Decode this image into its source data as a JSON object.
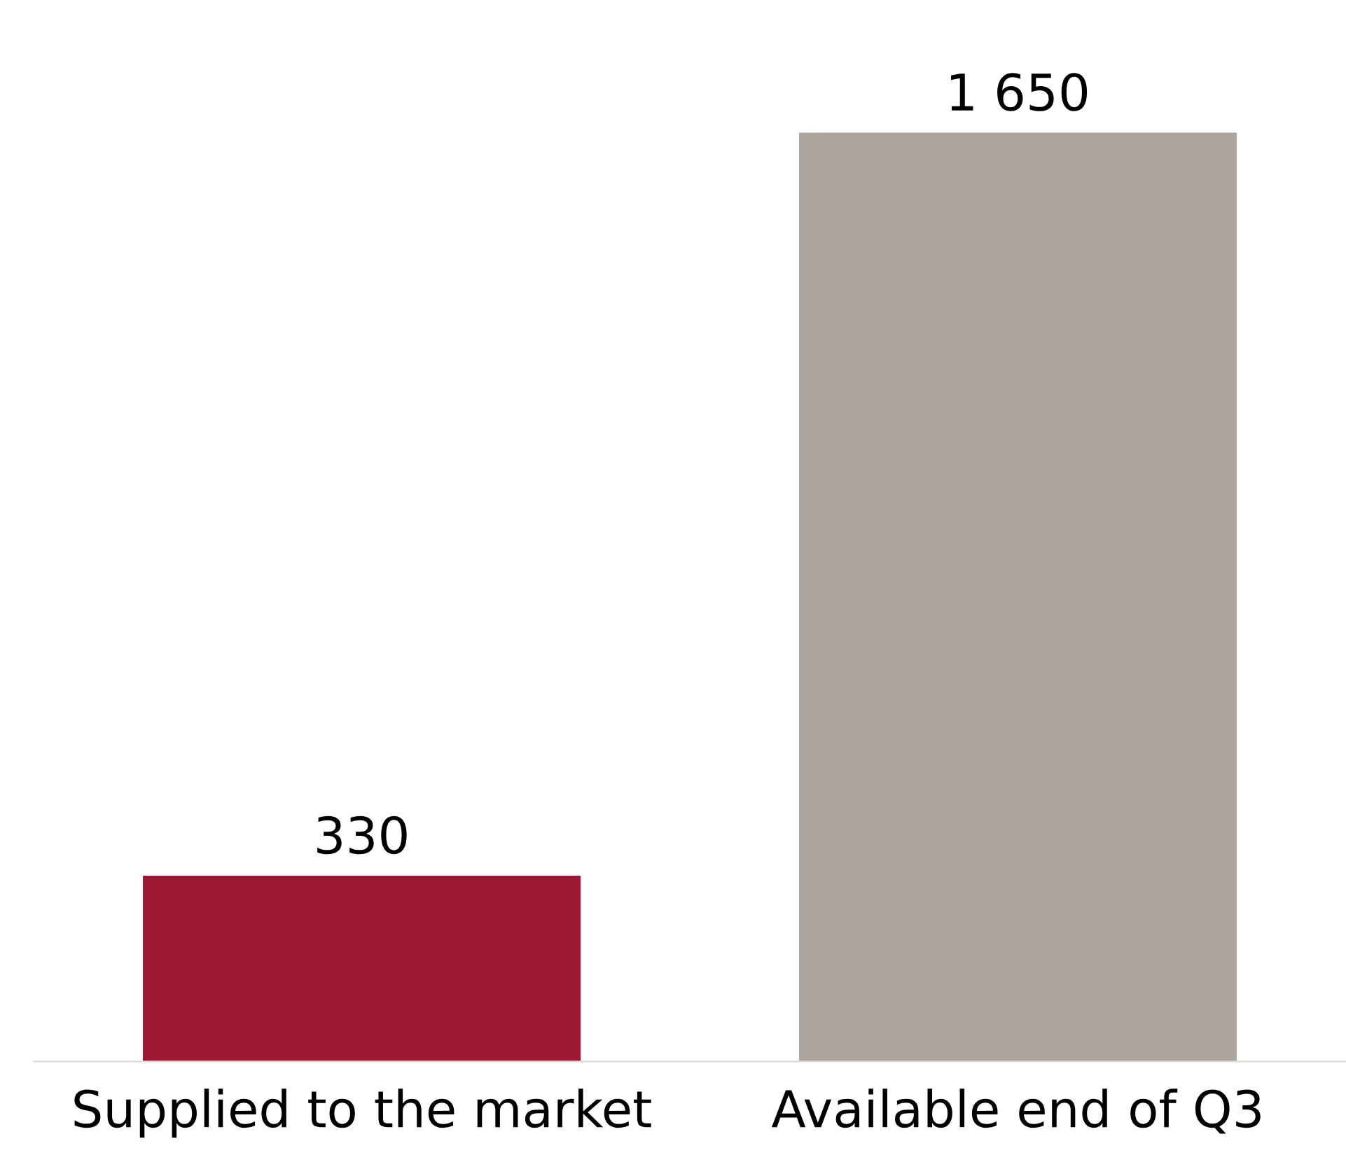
{
  "chart_data": {
    "type": "bar",
    "categories": [
      "Supplied to the market",
      "Available end of Q3"
    ],
    "values": [
      330,
      1650
    ],
    "colors": [
      "#9e1733",
      "#afa59f"
    ],
    "value_labels": [
      "330",
      "1 650"
    ],
    "tick_labels": "x"
  }
}
